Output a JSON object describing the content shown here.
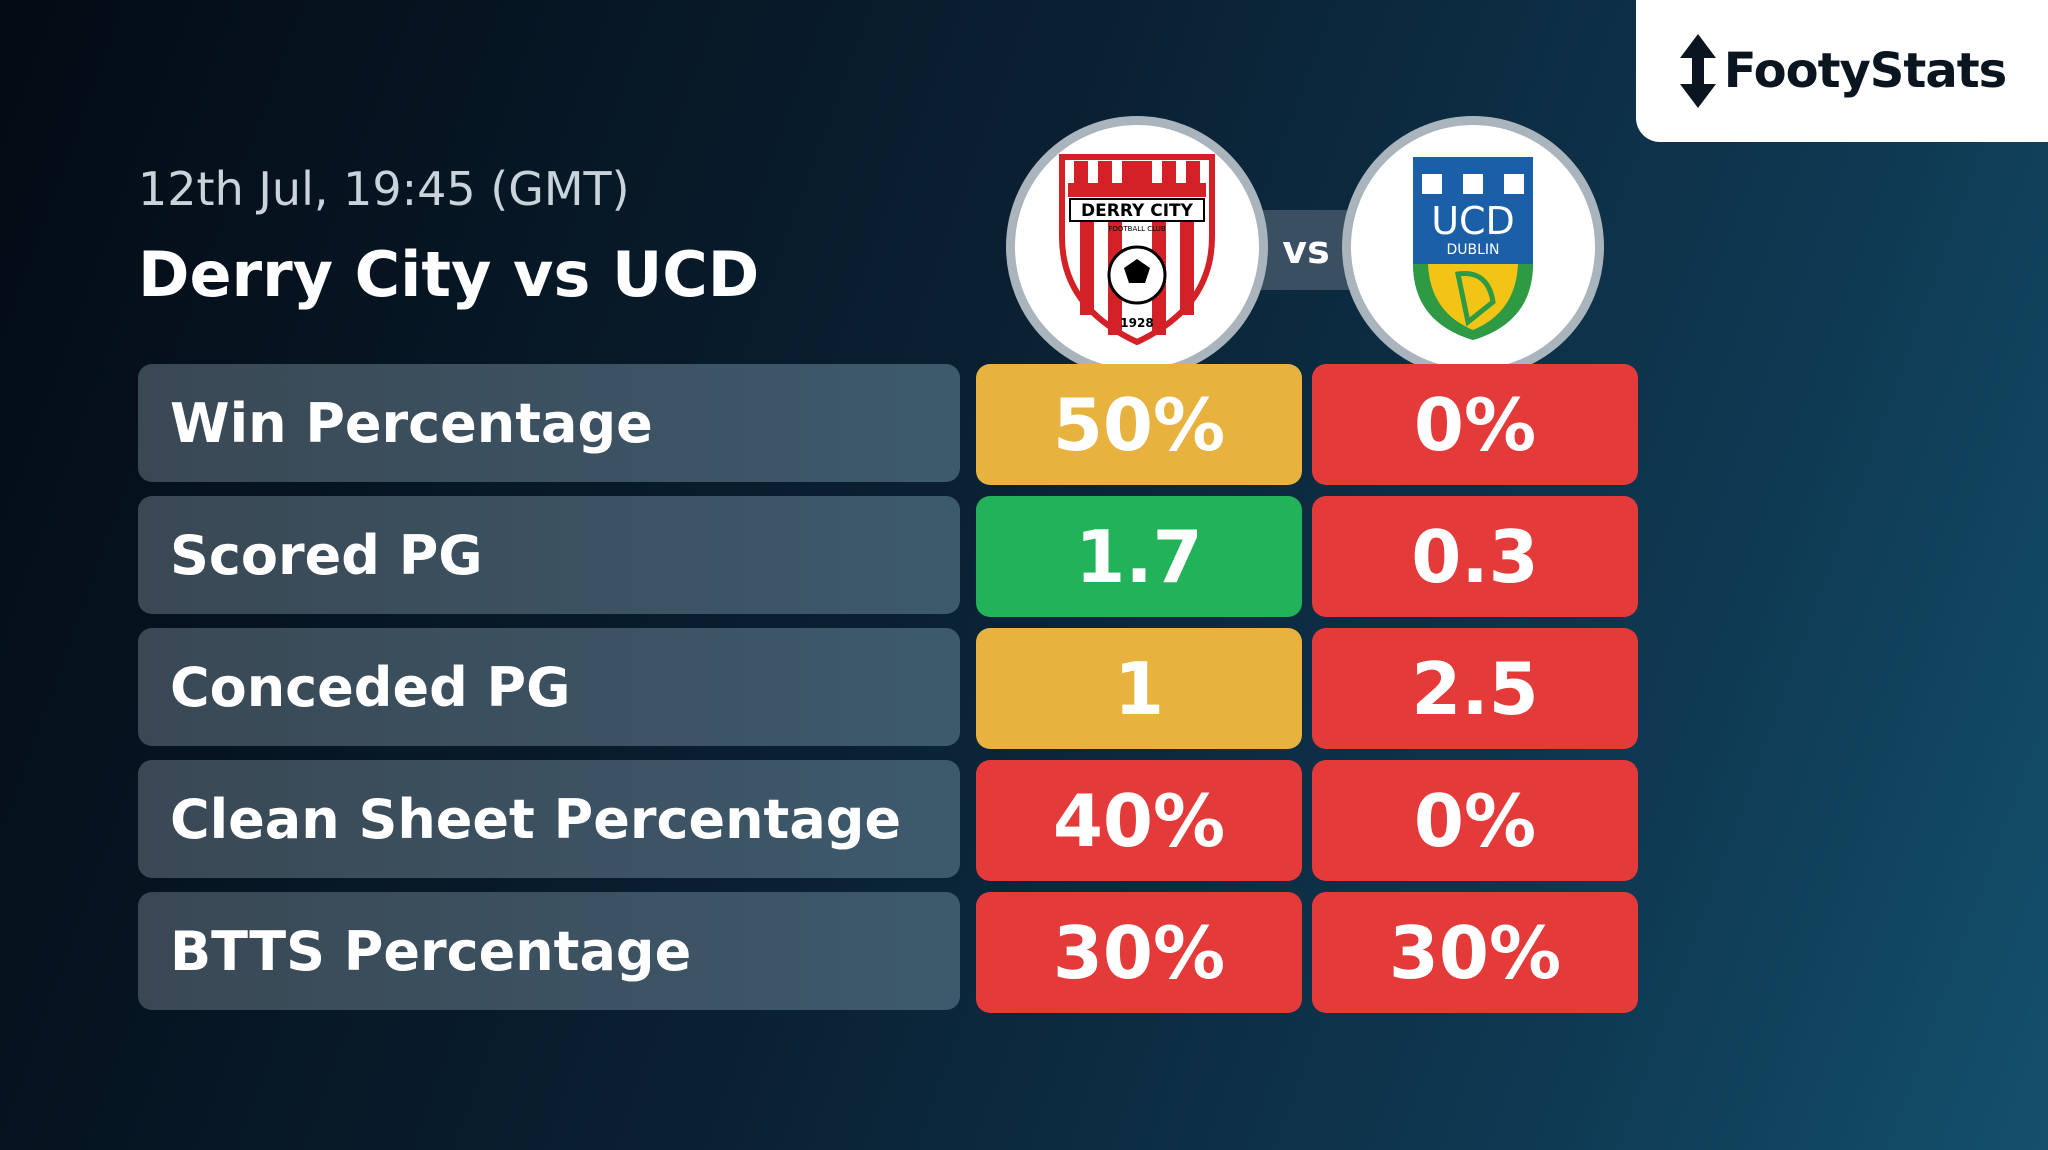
{
  "brand": {
    "name": "FootyStats",
    "icon": "up-down-arrow-icon"
  },
  "match": {
    "date": "12th Jul, 19:45 (GMT)",
    "title": "Derry City vs UCD",
    "vs_label": "vs"
  },
  "teams": {
    "home": {
      "badge_text": "DERRY CITY",
      "badge_subtext": "FOOTBALL CLUB",
      "badge_year": "1928"
    },
    "away": {
      "badge_text": "UCD",
      "badge_subtext": "DUBLIN"
    }
  },
  "colors": {
    "yellow": "#e8b23e",
    "green": "#22b35a",
    "red": "#e53a3a"
  },
  "stats": [
    {
      "label": "Win Percentage",
      "home": "50%",
      "home_color": "#e8b23e",
      "away": "0%",
      "away_color": "#e53a3a"
    },
    {
      "label": "Scored PG",
      "home": "1.7",
      "home_color": "#22b35a",
      "away": "0.3",
      "away_color": "#e53a3a"
    },
    {
      "label": "Conceded PG",
      "home": "1",
      "home_color": "#e8b23e",
      "away": "2.5",
      "away_color": "#e53a3a"
    },
    {
      "label": "Clean Sheet Percentage",
      "home": "40%",
      "home_color": "#e53a3a",
      "away": "0%",
      "away_color": "#e53a3a"
    },
    {
      "label": "BTTS Percentage",
      "home": "30%",
      "home_color": "#e53a3a",
      "away": "30%",
      "away_color": "#e53a3a"
    }
  ]
}
